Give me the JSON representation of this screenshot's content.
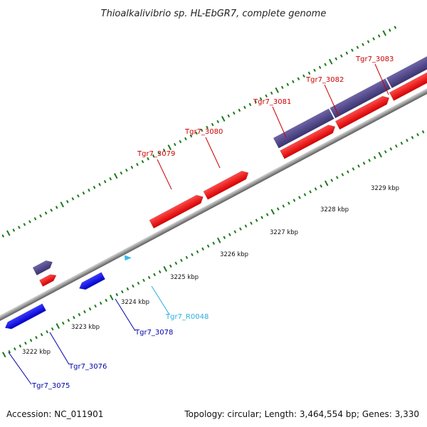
{
  "title": "Thioalkalivibrio sp. HL-EbGR7, complete genome",
  "footer": {
    "accession": "Accession: NC_011901",
    "summary": "Topology: circular; Length: 3,464,554 bp; Genes: 3,330"
  },
  "colors": {
    "forward_cds": "#ee1111",
    "reverse_cds": "#1515dd",
    "operon": "#554a8e",
    "rna": "#33bbee",
    "forward_label": "#cc0000",
    "reverse_label": "#0000aa",
    "rna_label": "#2aaedd",
    "tick_mark": "#1a7a1a",
    "backbone": "#9a9a9a"
  },
  "ticks": [
    {
      "kbp": 3222,
      "label": "3222 kbp"
    },
    {
      "kbp": 3223,
      "label": "3223 kbp"
    },
    {
      "kbp": 3224,
      "label": "3224 kbp"
    },
    {
      "kbp": 3225,
      "label": "3225 kbp"
    },
    {
      "kbp": 3226,
      "label": "3226 kbp"
    },
    {
      "kbp": 3227,
      "label": "3227 kbp"
    },
    {
      "kbp": 3228,
      "label": "3228 kbp"
    },
    {
      "kbp": 3229,
      "label": "3229 kbp"
    }
  ],
  "genes": [
    {
      "name": "Tgr7_3075",
      "strand": "reverse",
      "type": "cds"
    },
    {
      "name": "Tgr7_3076",
      "strand": "reverse",
      "type": "cds"
    },
    {
      "name": "Tgr7_3078",
      "strand": "reverse",
      "type": "cds"
    },
    {
      "name": "Tgr7_R0048",
      "strand": "reverse",
      "type": "rna"
    },
    {
      "name": "Tgr7_3079",
      "strand": "forward",
      "type": "cds"
    },
    {
      "name": "Tgr7_3080",
      "strand": "forward",
      "type": "cds"
    },
    {
      "name": "Tgr7_3081",
      "strand": "forward",
      "type": "cds"
    },
    {
      "name": "Tgr7_3082",
      "strand": "forward",
      "type": "cds"
    },
    {
      "name": "Tgr7_3083",
      "strand": "forward",
      "type": "cds"
    }
  ]
}
